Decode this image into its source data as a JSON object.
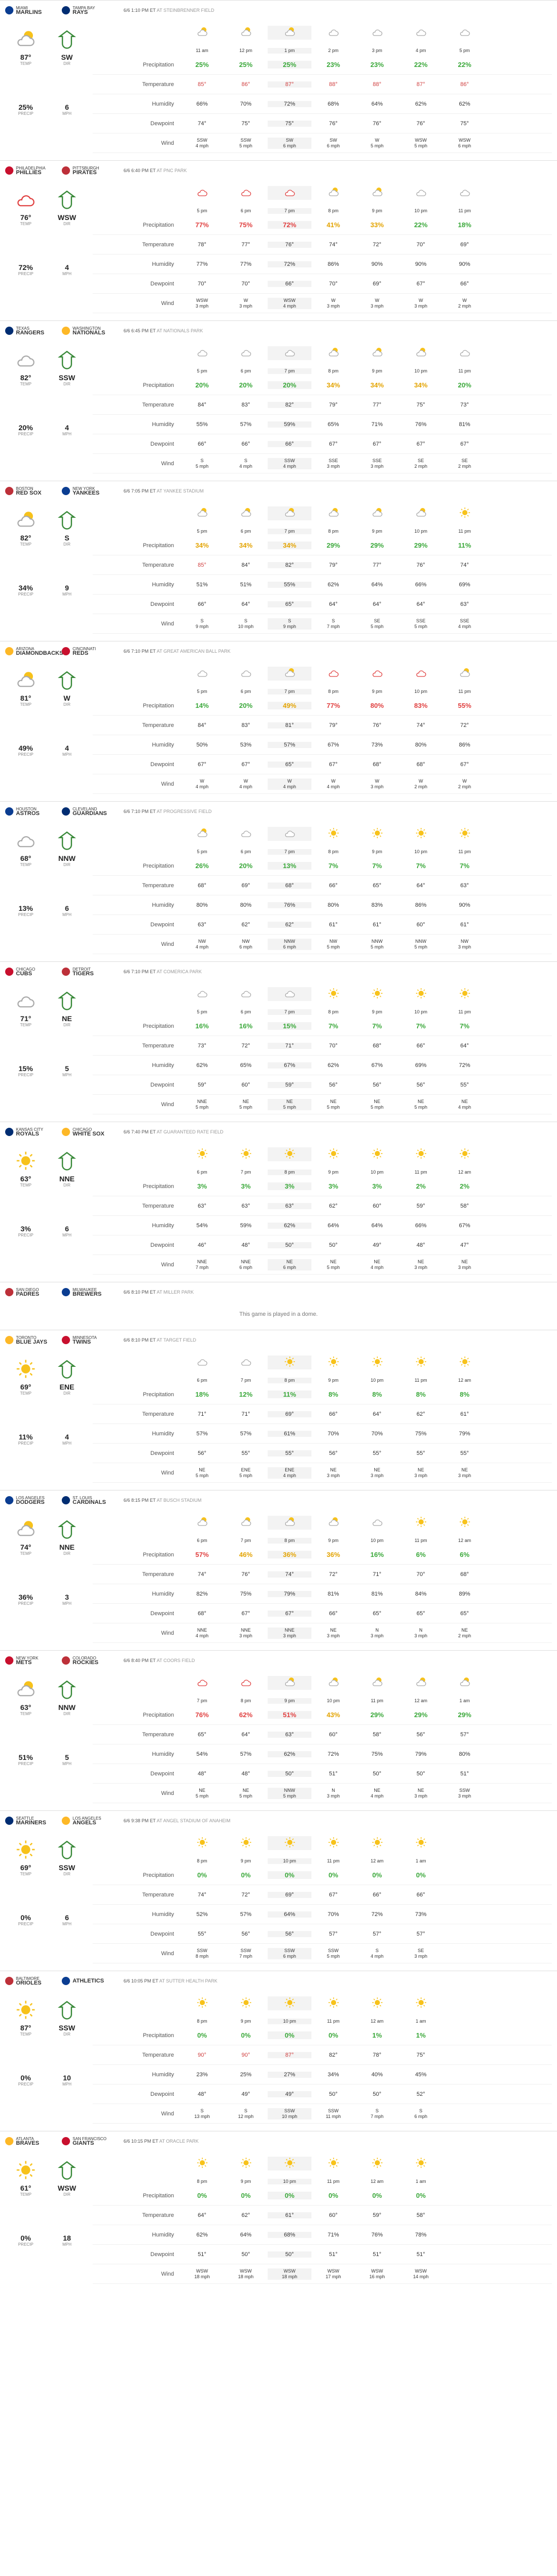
{
  "labels": {
    "precip": "Precipitation",
    "temp": "Temperature",
    "humidity": "Humidity",
    "dewpoint": "Dewpoint",
    "wind": "Wind",
    "temp_lbl": "TEMP",
    "dir_lbl": "DIR",
    "precip_lbl": "PRECIP",
    "mph_lbl": "MPH"
  },
  "games": [
    {
      "away": "MARLINS",
      "away_city": "MIAMI",
      "home": "RAYS",
      "home_city": "TAMPA BAY",
      "time": "6/6 1:10 PM ET",
      "park": "AT STEINBRENNER FIELD",
      "temp": "87°",
      "dir": "SW",
      "precip": "25%",
      "mph": "6",
      "times": [
        "11 am",
        "12 pm",
        "1 pm",
        "2 pm",
        "3 pm",
        "4 pm",
        "5 pm"
      ],
      "precip_row": [
        "25%",
        "25%",
        "25%",
        "23%",
        "23%",
        "22%",
        "22%"
      ],
      "temp_row": [
        "85°",
        "86°",
        "87°",
        "88°",
        "88°",
        "87°",
        "86°"
      ],
      "hum_row": [
        "66%",
        "70%",
        "72%",
        "68%",
        "64%",
        "62%",
        "62%"
      ],
      "dew_row": [
        "74°",
        "75°",
        "75°",
        "76°",
        "76°",
        "76°",
        "75°"
      ],
      "wind_row": [
        "SSW 4 mph",
        "SSW 5 mph",
        "SW 6 mph",
        "SW 6 mph",
        "W 5 mph",
        "WSW 5 mph",
        "WSW 6 mph"
      ]
    },
    {
      "away": "PHILLIES",
      "away_city": "PHILADELPHIA",
      "home": "PIRATES",
      "home_city": "PITTSBURGH",
      "time": "6/6 6:40 PM ET",
      "park": "AT PNC PARK",
      "temp": "76°",
      "dir": "WSW",
      "precip": "72%",
      "mph": "4",
      "times": [
        "5 pm",
        "6 pm",
        "7 pm",
        "8 pm",
        "9 pm",
        "10 pm",
        "11 pm"
      ],
      "precip_row": [
        "77%",
        "75%",
        "72%",
        "41%",
        "33%",
        "22%",
        "18%"
      ],
      "temp_row": [
        "78°",
        "77°",
        "76°",
        "74°",
        "72°",
        "70°",
        "69°"
      ],
      "hum_row": [
        "77%",
        "77%",
        "72%",
        "86%",
        "90%",
        "90%",
        "90%"
      ],
      "dew_row": [
        "70°",
        "70°",
        "66°",
        "70°",
        "69°",
        "67°",
        "66°"
      ],
      "wind_row": [
        "WSW 3 mph",
        "W 3 mph",
        "WSW 4 mph",
        "W 3 mph",
        "W 3 mph",
        "W 3 mph",
        "W 2 mph"
      ]
    },
    {
      "away": "RANGERS",
      "away_city": "TEXAS",
      "home": "NATIONALS",
      "home_city": "WASHINGTON",
      "time": "6/6 6:45 PM ET",
      "park": "AT NATIONALS PARK",
      "temp": "82°",
      "dir": "SSW",
      "precip": "20%",
      "mph": "4",
      "times": [
        "5 pm",
        "6 pm",
        "7 pm",
        "8 pm",
        "9 pm",
        "10 pm",
        "11 pm"
      ],
      "precip_row": [
        "20%",
        "20%",
        "20%",
        "34%",
        "34%",
        "34%",
        "20%"
      ],
      "temp_row": [
        "84°",
        "83°",
        "82°",
        "79°",
        "77°",
        "75°",
        "73°"
      ],
      "hum_row": [
        "55%",
        "57%",
        "59%",
        "65%",
        "71%",
        "76%",
        "81%"
      ],
      "dew_row": [
        "66°",
        "66°",
        "66°",
        "67°",
        "67°",
        "67°",
        "67°"
      ],
      "wind_row": [
        "S 5 mph",
        "S 4 mph",
        "SSW 4 mph",
        "SSE 3 mph",
        "SSE 3 mph",
        "SE 2 mph",
        "SE 2 mph"
      ]
    },
    {
      "away": "RED SOX",
      "away_city": "BOSTON",
      "home": "YANKEES",
      "home_city": "NEW YORK",
      "time": "6/6 7:05 PM ET",
      "park": "AT YANKEE STADIUM",
      "temp": "82°",
      "dir": "S",
      "precip": "34%",
      "mph": "9",
      "times": [
        "5 pm",
        "6 pm",
        "7 pm",
        "8 pm",
        "9 pm",
        "10 pm",
        "11 pm"
      ],
      "precip_row": [
        "34%",
        "34%",
        "34%",
        "29%",
        "29%",
        "29%",
        "11%"
      ],
      "temp_row": [
        "85°",
        "84°",
        "82°",
        "79°",
        "77°",
        "76°",
        "74°"
      ],
      "hum_row": [
        "51%",
        "51%",
        "55%",
        "62%",
        "64%",
        "66%",
        "69%"
      ],
      "dew_row": [
        "66°",
        "64°",
        "65°",
        "64°",
        "64°",
        "64°",
        "63°"
      ],
      "wind_row": [
        "S 9 mph",
        "S 10 mph",
        "S 9 mph",
        "S 7 mph",
        "SE 5 mph",
        "SSE 5 mph",
        "SSE 4 mph"
      ]
    },
    {
      "away": "DIAMONDBACKS",
      "away_city": "ARIZONA",
      "home": "REDS",
      "home_city": "CINCINNATI",
      "time": "6/6 7:10 PM ET",
      "park": "AT GREAT AMERICAN BALL PARK",
      "temp": "81°",
      "dir": "W",
      "precip": "49%",
      "mph": "4",
      "times": [
        "5 pm",
        "6 pm",
        "7 pm",
        "8 pm",
        "9 pm",
        "10 pm",
        "11 pm"
      ],
      "precip_row": [
        "14%",
        "20%",
        "49%",
        "77%",
        "80%",
        "83%",
        "55%"
      ],
      "temp_row": [
        "84°",
        "83°",
        "81°",
        "79°",
        "76°",
        "74°",
        "72°"
      ],
      "hum_row": [
        "50%",
        "53%",
        "57%",
        "67%",
        "73%",
        "80%",
        "86%"
      ],
      "dew_row": [
        "67°",
        "67°",
        "65°",
        "67°",
        "68°",
        "68°",
        "67°"
      ],
      "wind_row": [
        "W 4 mph",
        "W 4 mph",
        "W 4 mph",
        "W 4 mph",
        "W 3 mph",
        "W 2 mph",
        "W 2 mph"
      ]
    },
    {
      "away": "ASTROS",
      "away_city": "HOUSTON",
      "home": "GUARDIANS",
      "home_city": "CLEVELAND",
      "time": "6/6 7:10 PM ET",
      "park": "AT PROGRESSIVE FIELD",
      "temp": "68°",
      "dir": "NNW",
      "precip": "13%",
      "mph": "6",
      "times": [
        "5 pm",
        "6 pm",
        "7 pm",
        "8 pm",
        "9 pm",
        "10 pm",
        "11 pm"
      ],
      "precip_row": [
        "26%",
        "20%",
        "13%",
        "7%",
        "7%",
        "7%",
        "7%"
      ],
      "temp_row": [
        "68°",
        "69°",
        "68°",
        "66°",
        "65°",
        "64°",
        "63°"
      ],
      "hum_row": [
        "80%",
        "80%",
        "76%",
        "80%",
        "83%",
        "86%",
        "90%"
      ],
      "dew_row": [
        "63°",
        "62°",
        "62°",
        "61°",
        "61°",
        "60°",
        "61°"
      ],
      "wind_row": [
        "NW 4 mph",
        "NW 6 mph",
        "NNW 6 mph",
        "NW 5 mph",
        "NNW 5 mph",
        "NNW 5 mph",
        "NW 3 mph"
      ]
    },
    {
      "away": "CUBS",
      "away_city": "CHICAGO",
      "home": "TIGERS",
      "home_city": "DETROIT",
      "time": "6/6 7:10 PM ET",
      "park": "AT COMERICA PARK",
      "temp": "71°",
      "dir": "NE",
      "precip": "15%",
      "mph": "5",
      "times": [
        "5 pm",
        "6 pm",
        "7 pm",
        "8 pm",
        "9 pm",
        "10 pm",
        "11 pm"
      ],
      "precip_row": [
        "16%",
        "16%",
        "15%",
        "7%",
        "7%",
        "7%",
        "7%"
      ],
      "temp_row": [
        "73°",
        "72°",
        "71°",
        "70°",
        "68°",
        "66°",
        "64°"
      ],
      "hum_row": [
        "62%",
        "65%",
        "67%",
        "62%",
        "67%",
        "69%",
        "72%"
      ],
      "dew_row": [
        "59°",
        "60°",
        "59°",
        "56°",
        "56°",
        "56°",
        "55°"
      ],
      "wind_row": [
        "NNE 5 mph",
        "NE 5 mph",
        "NE 5 mph",
        "NE 5 mph",
        "NE 5 mph",
        "NE 5 mph",
        "NE 4 mph"
      ]
    },
    {
      "away": "ROYALS",
      "away_city": "KANSAS CITY",
      "home": "WHITE SOX",
      "home_city": "CHICAGO",
      "time": "6/6 7:40 PM ET",
      "park": "AT GUARANTEED RATE FIELD",
      "temp": "63°",
      "dir": "NNE",
      "precip": "3%",
      "mph": "6",
      "times": [
        "6 pm",
        "7 pm",
        "8 pm",
        "9 pm",
        "10 pm",
        "11 pm",
        "12 am"
      ],
      "precip_row": [
        "3%",
        "3%",
        "3%",
        "3%",
        "3%",
        "2%",
        "2%"
      ],
      "temp_row": [
        "63°",
        "63°",
        "63°",
        "62°",
        "60°",
        "59°",
        "58°"
      ],
      "hum_row": [
        "54%",
        "59%",
        "62%",
        "64%",
        "64%",
        "66%",
        "67%"
      ],
      "dew_row": [
        "46°",
        "48°",
        "50°",
        "50°",
        "49°",
        "48°",
        "47°"
      ],
      "wind_row": [
        "NNE 7 mph",
        "NNE 6 mph",
        "NE 6 mph",
        "NE 5 mph",
        "NE 4 mph",
        "NE 3 mph",
        "NE 3 mph"
      ]
    },
    {
      "away": "PADRES",
      "away_city": "SAN DIEGO",
      "home": "BREWERS",
      "home_city": "MILWAUKEE",
      "time": "6/6 8:10 PM ET",
      "park": "AT MILLER PARK",
      "dome": "This game is played in a dome."
    },
    {
      "away": "BLUE JAYS",
      "away_city": "TORONTO",
      "home": "TWINS",
      "home_city": "MINNESOTA",
      "time": "6/6 8:10 PM ET",
      "park": "AT TARGET FIELD",
      "temp": "69°",
      "dir": "ENE",
      "precip": "11%",
      "mph": "4",
      "times": [
        "6 pm",
        "7 pm",
        "8 pm",
        "9 pm",
        "10 pm",
        "11 pm",
        "12 am"
      ],
      "precip_row": [
        "18%",
        "12%",
        "11%",
        "8%",
        "8%",
        "8%",
        "8%"
      ],
      "temp_row": [
        "71°",
        "71°",
        "69°",
        "66°",
        "64°",
        "62°",
        "61°"
      ],
      "hum_row": [
        "57%",
        "57%",
        "61%",
        "70%",
        "70%",
        "75%",
        "79%"
      ],
      "dew_row": [
        "56°",
        "55°",
        "55°",
        "56°",
        "55°",
        "55°",
        "55°"
      ],
      "wind_row": [
        "NE 5 mph",
        "ENE 5 mph",
        "ENE 4 mph",
        "NE 3 mph",
        "NE 3 mph",
        "NE 3 mph",
        "NE 3 mph"
      ]
    },
    {
      "away": "DODGERS",
      "away_city": "LOS ANGELES",
      "home": "CARDINALS",
      "home_city": "ST. LOUIS",
      "time": "6/6 8:15 PM ET",
      "park": "AT BUSCH STADIUM",
      "temp": "74°",
      "dir": "NNE",
      "precip": "36%",
      "mph": "3",
      "times": [
        "6 pm",
        "7 pm",
        "8 pm",
        "9 pm",
        "10 pm",
        "11 pm",
        "12 am"
      ],
      "precip_row": [
        "57%",
        "46%",
        "36%",
        "36%",
        "16%",
        "6%",
        "6%"
      ],
      "temp_row": [
        "74°",
        "76°",
        "74°",
        "72°",
        "71°",
        "70°",
        "68°"
      ],
      "hum_row": [
        "82%",
        "75%",
        "79%",
        "81%",
        "81%",
        "84%",
        "89%"
      ],
      "dew_row": [
        "68°",
        "67°",
        "67°",
        "66°",
        "65°",
        "65°",
        "65°"
      ],
      "wind_row": [
        "NNE 4 mph",
        "NNE 3 mph",
        "NNE 3 mph",
        "NE 3 mph",
        "N 3 mph",
        "N 3 mph",
        "NE 2 mph"
      ]
    },
    {
      "away": "METS",
      "away_city": "NEW YORK",
      "home": "ROCKIES",
      "home_city": "COLORADO",
      "time": "6/6 8:40 PM ET",
      "park": "AT COORS FIELD",
      "temp": "63°",
      "dir": "NNW",
      "precip": "51%",
      "mph": "5",
      "times": [
        "7 pm",
        "8 pm",
        "9 pm",
        "10 pm",
        "11 pm",
        "12 am",
        "1 am"
      ],
      "precip_row": [
        "76%",
        "62%",
        "51%",
        "43%",
        "29%",
        "29%",
        "29%"
      ],
      "temp_row": [
        "65°",
        "64°",
        "63°",
        "60°",
        "58°",
        "56°",
        "57°"
      ],
      "hum_row": [
        "54%",
        "57%",
        "62%",
        "72%",
        "75%",
        "79%",
        "80%"
      ],
      "dew_row": [
        "48°",
        "48°",
        "50°",
        "51°",
        "50°",
        "50°",
        "51°"
      ],
      "wind_row": [
        "NE 5 mph",
        "NE 5 mph",
        "NNW 5 mph",
        "N 3 mph",
        "NE 4 mph",
        "NE 3 mph",
        "SSW 3 mph"
      ]
    },
    {
      "away": "MARINERS",
      "away_city": "SEATTLE",
      "home": "ANGELS",
      "home_city": "LOS ANGELES",
      "time": "6/6 9:38 PM ET",
      "park": "AT ANGEL STADIUM OF ANAHEIM",
      "temp": "69°",
      "dir": "SSW",
      "precip": "0%",
      "mph": "6",
      "times": [
        "8 pm",
        "9 pm",
        "10 pm",
        "11 pm",
        "12 am",
        "1 am"
      ],
      "precip_row": [
        "0%",
        "0%",
        "0%",
        "0%",
        "0%",
        "0%"
      ],
      "temp_row": [
        "74°",
        "72°",
        "69°",
        "67°",
        "66°",
        "66°"
      ],
      "hum_row": [
        "52%",
        "57%",
        "64%",
        "70%",
        "72%",
        "73%"
      ],
      "dew_row": [
        "55°",
        "56°",
        "56°",
        "57°",
        "57°",
        "57°"
      ],
      "wind_row": [
        "SSW 8 mph",
        "SSW 7 mph",
        "SSW 6 mph",
        "SSW 5 mph",
        "S 4 mph",
        "SE 3 mph"
      ]
    },
    {
      "away": "ORIOLES",
      "away_city": "BALTIMORE",
      "home": "ATHLETICS",
      "home_city": "",
      "time": "6/6 10:05 PM ET",
      "park": "AT SUTTER HEALTH PARK",
      "temp": "87°",
      "dir": "SSW",
      "precip": "0%",
      "mph": "10",
      "times": [
        "8 pm",
        "9 pm",
        "10 pm",
        "11 pm",
        "12 am",
        "1 am"
      ],
      "precip_row": [
        "0%",
        "0%",
        "0%",
        "0%",
        "1%",
        "1%"
      ],
      "temp_row": [
        "90°",
        "90°",
        "87°",
        "82°",
        "78°",
        "75°"
      ],
      "hum_row": [
        "23%",
        "25%",
        "27%",
        "34%",
        "40%",
        "45%"
      ],
      "dew_row": [
        "48°",
        "49°",
        "49°",
        "50°",
        "50°",
        "52°"
      ],
      "wind_row": [
        "S 13 mph",
        "S 12 mph",
        "SSW 10 mph",
        "SSW 11 mph",
        "S 7 mph",
        "S 6 mph"
      ]
    },
    {
      "away": "BRAVES",
      "away_city": "ATLANTA",
      "home": "GIANTS",
      "home_city": "SAN FRANCISCO",
      "time": "6/6 10:15 PM ET",
      "park": "AT ORACLE PARK",
      "temp": "61°",
      "dir": "WSW",
      "precip": "0%",
      "mph": "18",
      "times": [
        "8 pm",
        "9 pm",
        "10 pm",
        "11 pm",
        "12 am",
        "1 am"
      ],
      "precip_row": [
        "0%",
        "0%",
        "0%",
        "0%",
        "0%",
        "0%"
      ],
      "temp_row": [
        "64°",
        "62°",
        "61°",
        "60°",
        "59°",
        "58°"
      ],
      "hum_row": [
        "62%",
        "64%",
        "68%",
        "71%",
        "76%",
        "78%"
      ],
      "dew_row": [
        "51°",
        "50°",
        "50°",
        "51°",
        "51°",
        "51°"
      ],
      "wind_row": [
        "WSW 18 mph",
        "WSW 18 mph",
        "WSW 18 mph",
        "WSW 17 mph",
        "WSW 16 mph",
        "WSW 14 mph"
      ]
    }
  ]
}
